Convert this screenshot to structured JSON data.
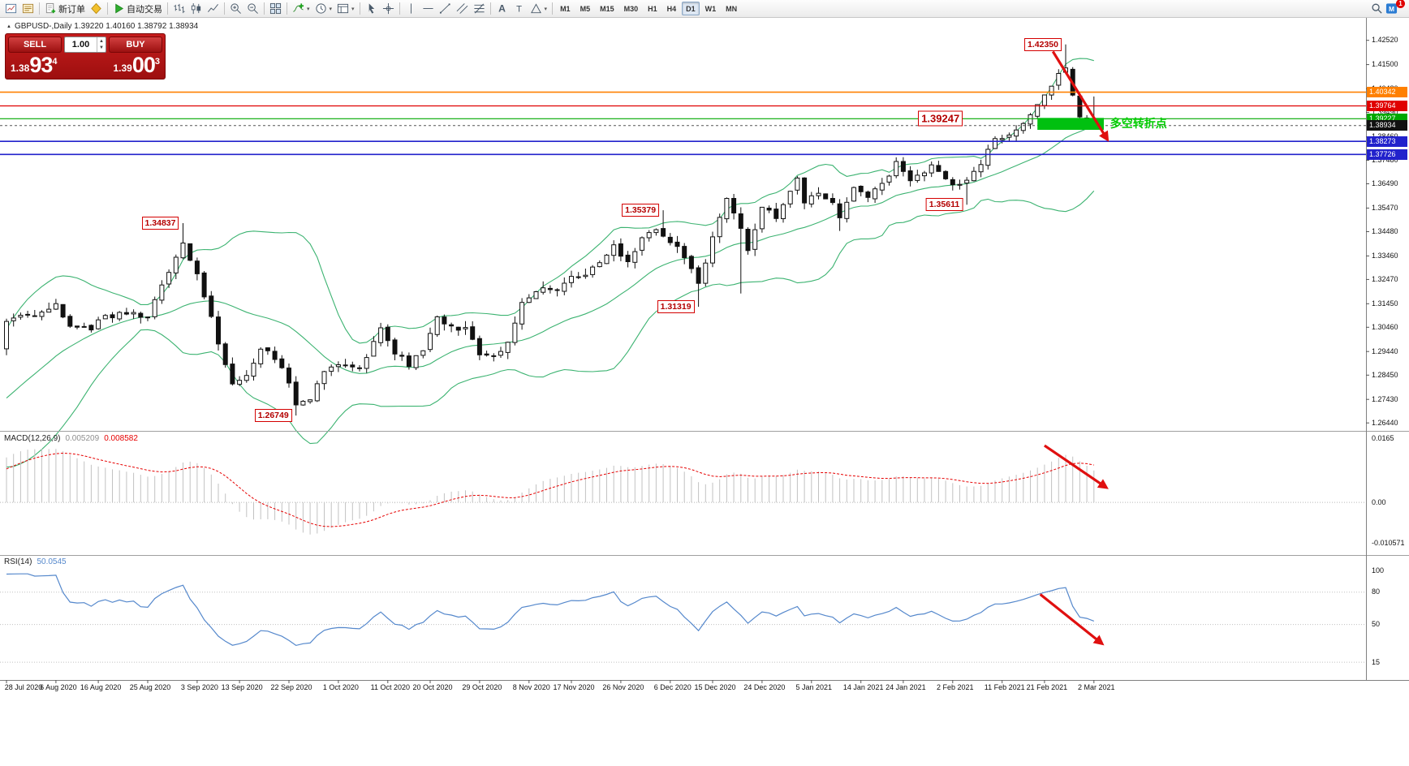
{
  "icons": {
    "dropdown_caret": "▾",
    "window_marker": "▲",
    "spinner_up": "▲",
    "spinner_down": "▼"
  },
  "toolbar": {
    "items": [
      {
        "type": "icon",
        "name": "new-chart"
      },
      {
        "type": "icon",
        "name": "profiles"
      },
      {
        "type": "sep"
      },
      {
        "type": "labeled",
        "name": "new-order",
        "icon": "new-order",
        "label": "新订单"
      },
      {
        "type": "icon",
        "name": "metaeditor"
      },
      {
        "type": "sep"
      },
      {
        "type": "labeled",
        "name": "auto-trading",
        "icon": "play",
        "label": "自动交易"
      },
      {
        "type": "sep"
      },
      {
        "type": "icon",
        "name": "bar-chart"
      },
      {
        "type": "icon",
        "name": "candle-chart"
      },
      {
        "type": "icon",
        "name": "line-chart"
      },
      {
        "type": "sep"
      },
      {
        "type": "icon",
        "name": "zoom-in"
      },
      {
        "type": "icon",
        "name": "zoom-out"
      },
      {
        "type": "sep"
      },
      {
        "type": "icon",
        "name": "tile-windows"
      },
      {
        "type": "sep"
      },
      {
        "type": "icon",
        "name": "indicators",
        "dropdown": true
      },
      {
        "type": "icon",
        "name": "periods",
        "dropdown": true
      },
      {
        "type": "icon",
        "name": "templates",
        "dropdown": true
      },
      {
        "type": "sep"
      },
      {
        "type": "icon",
        "name": "cursor"
      },
      {
        "type": "icon",
        "name": "crosshair"
      },
      {
        "type": "sep"
      },
      {
        "type": "icon",
        "name": "vline"
      },
      {
        "type": "icon",
        "name": "hline"
      },
      {
        "type": "icon",
        "name": "trendline"
      },
      {
        "type": "icon",
        "name": "channel"
      },
      {
        "type": "icon",
        "name": "fibo"
      },
      {
        "type": "sep"
      },
      {
        "type": "icon",
        "name": "text"
      },
      {
        "type": "icon",
        "name": "label"
      },
      {
        "type": "icon",
        "name": "shapes",
        "dropdown": true
      },
      {
        "type": "sep"
      },
      {
        "type": "timeframes"
      },
      {
        "type": "spacer"
      },
      {
        "type": "icon",
        "name": "search"
      },
      {
        "type": "notification"
      }
    ],
    "timeframes": [
      "M1",
      "M5",
      "M15",
      "M30",
      "H1",
      "H4",
      "D1",
      "W1",
      "MN"
    ],
    "active_timeframe": "D1",
    "notification_count": "1"
  },
  "chart": {
    "symbol_line": "GBPUSD-,Daily  1.39220 1.40160 1.38792 1.38934"
  },
  "trade_panel": {
    "sell_label": "SELL",
    "buy_label": "BUY",
    "lot_size": "1.00",
    "sell_price": {
      "small": "1.38",
      "big": "93",
      "sup": "4"
    },
    "buy_price": {
      "small": "1.39",
      "big": "00",
      "sup": "3"
    }
  },
  "chart_data": {
    "type": "candlestick",
    "symbol": "GBPUSD-",
    "period": "Daily",
    "ohlc": {
      "open": "1.39220",
      "high": "1.40160",
      "low": "1.38792",
      "close": "1.38934"
    },
    "colors": {
      "bollinger": "#3CB371",
      "candle_up": "#ffffff",
      "candle_down": "#111111",
      "candle_border": "#111111",
      "macd_hist": "#c2c2c2",
      "macd_signal": "#e60000",
      "rsi_line": "#5588cc",
      "arrow": "#e01010"
    },
    "price_axis": {
      "ticks": [
        "1.42520",
        "1.41500",
        "1.40480",
        "1.39490",
        "1.38460",
        "1.37480",
        "1.36490",
        "1.35470",
        "1.34480",
        "1.33460",
        "1.32470",
        "1.31450",
        "1.30460",
        "1.29440",
        "1.28450",
        "1.27430",
        "1.26440"
      ]
    },
    "hlines": [
      {
        "price": "1.40342",
        "value": 1.40342,
        "color": "#ff8000",
        "width": 1.6
      },
      {
        "price": "1.39764",
        "value": 1.39764,
        "color": "#e00000",
        "width": 1.2
      },
      {
        "price": "1.39227",
        "value": 1.39227,
        "color": "#00a800",
        "width": 1.2
      },
      {
        "price": "1.38934",
        "value": 1.38934,
        "color": "#555555",
        "width": 1,
        "dash": "3 3",
        "tag_color": "#111111"
      },
      {
        "price": "1.38273",
        "value": 1.38273,
        "color": "#2222cc",
        "width": 1.6
      },
      {
        "price": "1.37726",
        "value": 1.37726,
        "color": "#2222cc",
        "width": 1.6
      }
    ],
    "candles": {
      "count": 155,
      "lead": 40,
      "seed": 20210302,
      "lead_anchors": [
        [
          -40,
          1.248
        ],
        [
          -33,
          1.254
        ],
        [
          -27,
          1.247
        ],
        [
          -20,
          1.256
        ],
        [
          -14,
          1.262
        ],
        [
          -8,
          1.274
        ],
        [
          -4,
          1.29
        ],
        [
          -1,
          1.296
        ]
      ],
      "anchors": [
        [
          0,
          1.308
        ],
        [
          2,
          1.31
        ],
        [
          4,
          1.3085
        ],
        [
          7,
          1.314
        ],
        [
          9,
          1.306
        ],
        [
          12,
          1.3045
        ],
        [
          14,
          1.309
        ],
        [
          17,
          1.3105
        ],
        [
          20,
          1.309
        ],
        [
          22,
          1.3215
        ],
        [
          24,
          1.335
        ],
        [
          25,
          1.339
        ],
        [
          27,
          1.328
        ],
        [
          30,
          1.2985
        ],
        [
          32,
          1.2805
        ],
        [
          34,
          1.2845
        ],
        [
          36,
          1.2965
        ],
        [
          38,
          1.2915
        ],
        [
          40,
          1.282
        ],
        [
          41,
          1.273
        ],
        [
          43,
          1.2748
        ],
        [
          45,
          1.2862
        ],
        [
          47,
          1.289
        ],
        [
          50,
          1.2872
        ],
        [
          51,
          1.2918
        ],
        [
          53,
          1.3035
        ],
        [
          55,
          1.2935
        ],
        [
          57,
          1.2892
        ],
        [
          59,
          1.2945
        ],
        [
          61,
          1.31
        ],
        [
          63,
          1.3042
        ],
        [
          65,
          1.304
        ],
        [
          67,
          1.2932
        ],
        [
          69,
          1.2922
        ],
        [
          71,
          1.2985
        ],
        [
          73,
          1.3155
        ],
        [
          74,
          1.3162
        ],
        [
          76,
          1.3222
        ],
        [
          78,
          1.3192
        ],
        [
          80,
          1.325
        ],
        [
          82,
          1.3256
        ],
        [
          84,
          1.3322
        ],
        [
          86,
          1.339
        ],
        [
          88,
          1.3312
        ],
        [
          90,
          1.3422
        ],
        [
          92,
          1.3452
        ],
        [
          93,
          1.3438
        ],
        [
          95,
          1.3386
        ],
        [
          97,
          1.3296
        ],
        [
          98,
          1.3226
        ],
        [
          99,
          1.3324
        ],
        [
          101,
          1.351
        ],
        [
          102,
          1.3582
        ],
        [
          104,
          1.3456
        ],
        [
          105,
          1.3364
        ],
        [
          107,
          1.356
        ],
        [
          109,
          1.3502
        ],
        [
          111,
          1.3622
        ],
        [
          112,
          1.3672
        ],
        [
          113,
          1.3568
        ],
        [
          115,
          1.3616
        ],
        [
          117,
          1.3562
        ],
        [
          118,
          1.3516
        ],
        [
          120,
          1.364
        ],
        [
          122,
          1.3588
        ],
        [
          124,
          1.3652
        ],
        [
          126,
          1.3732
        ],
        [
          128,
          1.3672
        ],
        [
          130,
          1.3692
        ],
        [
          131,
          1.3732
        ],
        [
          133,
          1.3662
        ],
        [
          135,
          1.3646
        ],
        [
          136,
          1.3672
        ],
        [
          138,
          1.3736
        ],
        [
          140,
          1.3832
        ],
        [
          142,
          1.3852
        ],
        [
          144,
          1.3904
        ],
        [
          146,
          1.3972
        ],
        [
          147,
          1.4012
        ],
        [
          148,
          1.4062
        ],
        [
          149,
          1.4116
        ],
        [
          150,
          1.414
        ],
        [
          151,
          1.4016
        ],
        [
          152,
          1.3933
        ],
        [
          153,
          1.3926
        ],
        [
          154,
          1.38934
        ]
      ],
      "marks": [
        {
          "bar": 25,
          "high": 1.34837
        },
        {
          "bar": 41,
          "low": 1.26749
        },
        {
          "bar": 93,
          "high": 1.35379
        },
        {
          "bar": 98,
          "low": 1.31319
        },
        {
          "bar": 104,
          "low": 1.3188
        },
        {
          "bar": 118,
          "low": 1.3451
        },
        {
          "bar": 136,
          "low": 1.35611
        },
        {
          "bar": 150,
          "high": 1.4235
        },
        {
          "bar": 154,
          "open": 1.3922,
          "high": 1.4016,
          "low": 1.38792,
          "close": 1.38934
        }
      ]
    },
    "annotations": [
      {
        "text": "1.42350",
        "bar": 150,
        "price": 1.4235
      },
      {
        "text": "1.39247",
        "bar": 136,
        "price": 1.39247,
        "big": true
      },
      {
        "text": "1.34837",
        "bar": 25,
        "price": 1.34837
      },
      {
        "text": "1.35379",
        "bar": 93,
        "price": 1.35379
      },
      {
        "text": "1.35611",
        "bar": 136,
        "price": 1.35611
      },
      {
        "text": "1.31319",
        "bar": 98,
        "price": 1.31319
      },
      {
        "text": "1.26749",
        "bar": 41,
        "price": 1.26749
      }
    ],
    "highlight": {
      "from_bar": 146,
      "to_bar": 155.4,
      "from_price": 1.3926,
      "to_price": 1.3876,
      "color": "#00c010"
    },
    "note_text": {
      "text": "多空转折点",
      "bar": 156.3,
      "price": 1.3905,
      "color": "#00cc00"
    },
    "arrows": [
      {
        "panel": "price",
        "from": [
          148.2,
          1.4205
        ],
        "to": [
          155.8,
          1.384
        ]
      },
      {
        "panel": "macd",
        "from": [
          147.0,
          0.0146
        ],
        "to": [
          155.6,
          0.004
        ]
      },
      {
        "panel": "rsi",
        "from": [
          146.4,
          78
        ],
        "to": [
          155.0,
          33
        ]
      }
    ],
    "macd": {
      "name": "MACD(12,26,9)",
      "value_main": "0.005209",
      "value_signal": "0.008582",
      "scale_max": 0.0165,
      "scale_min": -0.0125,
      "axis": [
        {
          "text": "0.0165",
          "v": 0.0165
        },
        {
          "text": "0.00",
          "v": 0
        },
        {
          "text": "-0.010571",
          "v": -0.010571
        }
      ]
    },
    "rsi": {
      "name": "RSI(14)",
      "value": "50.0545",
      "levels": [
        80,
        50,
        15
      ],
      "axis": [
        {
          "text": "100",
          "v": 100
        },
        {
          "text": "80",
          "v": 80
        },
        {
          "text": "50",
          "v": 50
        },
        {
          "text": "15",
          "v": 15
        }
      ]
    },
    "time_axis": [
      "28 Jul 2020",
      "6 Aug 2020",
      "16 Aug 2020",
      "25 Aug 2020",
      "3 Sep 2020",
      "13 Sep 2020",
      "22 Sep 2020",
      "1 Oct 2020",
      "11 Oct 2020",
      "20 Oct 2020",
      "29 Oct 2020",
      "8 Nov 2020",
      "17 Nov 2020",
      "26 Nov 2020",
      "6 Dec 2020",
      "15 Dec 2020",
      "24 Dec 2020",
      "5 Jan 2021",
      "14 Jan 2021",
      "24 Jan 2021",
      "2 Feb 2021",
      "11 Feb 2021",
      "21 Feb 2021",
      "2 Mar 2021"
    ]
  }
}
